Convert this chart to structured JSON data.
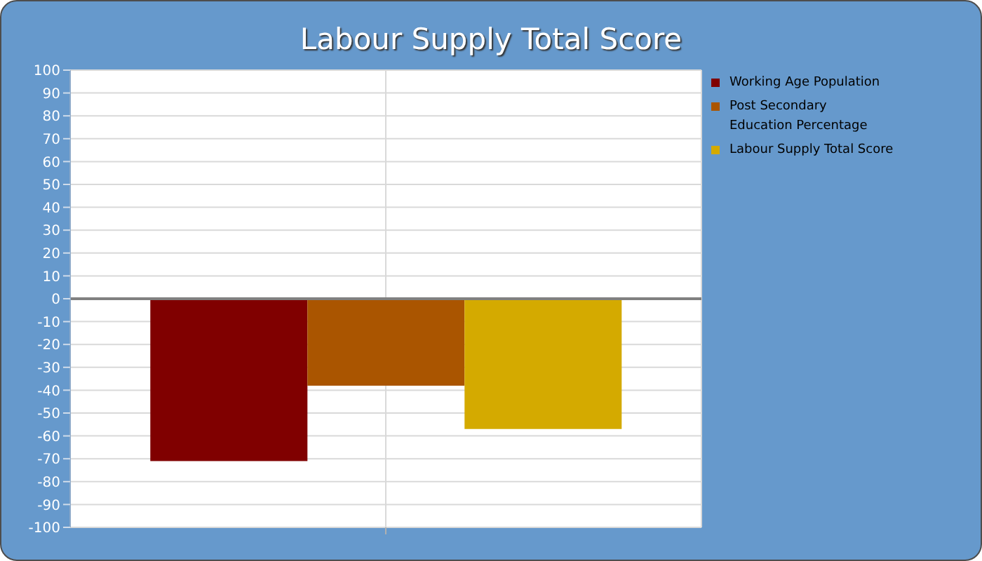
{
  "chart_data": {
    "type": "bar",
    "title": "Labour Supply Total Score",
    "categories": [
      null
    ],
    "series": [
      {
        "name": "Working Age Population",
        "color": "#800000",
        "values": [
          -71
        ]
      },
      {
        "name": "Post Secondary\nEducation Percentage",
        "color": "#aa5500",
        "values": [
          -38
        ]
      },
      {
        "name": "Labour Supply Total Score",
        "color": "#d4aa00",
        "values": [
          -57
        ]
      }
    ],
    "ylim": [
      -100,
      100
    ],
    "yticks": [
      -100,
      -90,
      -80,
      -70,
      -60,
      -50,
      -40,
      -30,
      -20,
      -10,
      0,
      10,
      20,
      30,
      40,
      50,
      60,
      70,
      80,
      90,
      100
    ],
    "grid": true,
    "legend": "right",
    "ref_lines": [
      {
        "axis": "y",
        "value": 0,
        "color": "#808080"
      }
    ]
  }
}
